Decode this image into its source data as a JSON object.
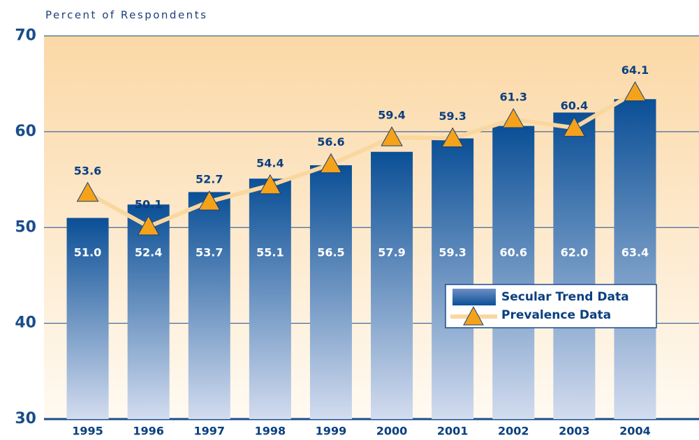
{
  "chart_data": {
    "type": "bar",
    "y_label": "Percent of Respondents",
    "categories": [
      "1995",
      "1996",
      "1997",
      "1998",
      "1999",
      "2000",
      "2001",
      "2002",
      "2003",
      "2004"
    ],
    "series": [
      {
        "name": "Secular Trend Data",
        "type": "bar",
        "color": "#0a4f96",
        "values": [
          51.0,
          52.4,
          53.7,
          55.1,
          56.5,
          57.9,
          59.3,
          60.6,
          62.0,
          63.4
        ],
        "value_labels": [
          "51.0",
          "52.4",
          "53.7",
          "55.1",
          "56.5",
          "57.9",
          "59.3",
          "60.6",
          "62.0",
          "63.4"
        ]
      },
      {
        "name": "Prevalence Data",
        "type": "line",
        "color": "#f5a21b",
        "values": [
          53.6,
          50.1,
          52.7,
          54.4,
          56.6,
          59.4,
          59.3,
          61.3,
          60.4,
          64.1
        ]
      }
    ],
    "ylim": [
      30,
      70
    ],
    "yticks": [
      30,
      40,
      50,
      60,
      70
    ],
    "grid": true,
    "legend": "lower right"
  }
}
